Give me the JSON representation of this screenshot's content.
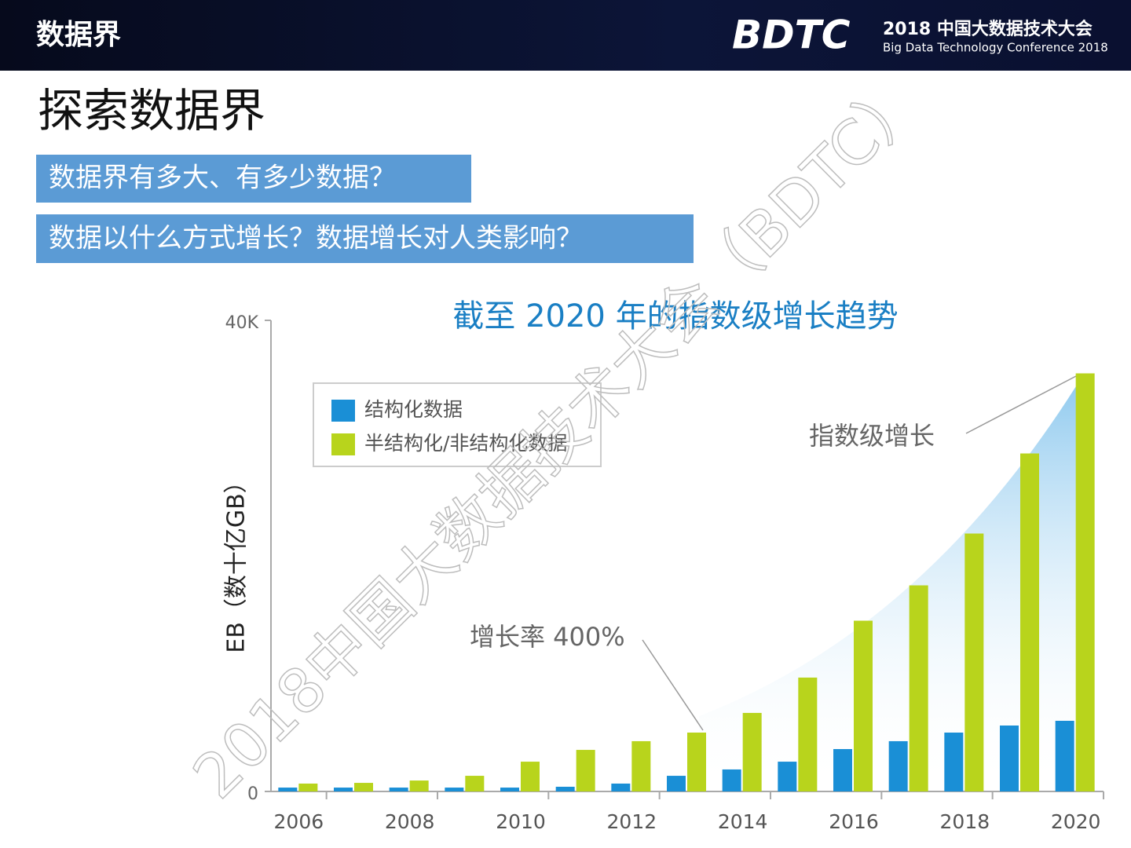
{
  "header": {
    "section": "数据界",
    "logo": "BDTC",
    "conference_cn": "2018 中国大数据技术大会",
    "conference_en": "Big Data Technology Conference 2018"
  },
  "slide_title": "探索数据界",
  "questions": [
    "数据界有多大、有多少数据？",
    "数据以什么方式增长？数据增长对人类影响？"
  ],
  "watermark": "2018中国大数据技术大会（BDTC）",
  "chart_data": {
    "type": "bar",
    "title": "截至 2020 年的指数级增长趋势",
    "y_label": "EB（数十亿GB）",
    "categories": [
      "2006",
      null,
      "2008",
      null,
      "2010",
      null,
      "2012",
      null,
      "2014",
      null,
      "2016",
      null,
      "2018",
      null,
      "2020"
    ],
    "series": [
      {
        "name": "结构化数据",
        "color": "#1a8fd6",
        "values": [
          330,
          330,
          330,
          330,
          330,
          400,
          670,
          1330,
          1870,
          2530,
          3600,
          4270,
          5000,
          5600,
          6000
        ]
      },
      {
        "name": "半结构化/非结构化数据",
        "color": "#b8d41c",
        "values": [
          670,
          730,
          930,
          1330,
          2530,
          3530,
          4270,
          5000,
          6670,
          9670,
          14500,
          17500,
          21900,
          28700,
          35500
        ]
      }
    ],
    "ylim": [
      0,
      40000
    ],
    "yticks": [
      0,
      {
        "value": 40000,
        "label": "40K"
      }
    ],
    "annotations": [
      "指数级增长",
      "增长率 400%"
    ],
    "legend": "upper left"
  }
}
